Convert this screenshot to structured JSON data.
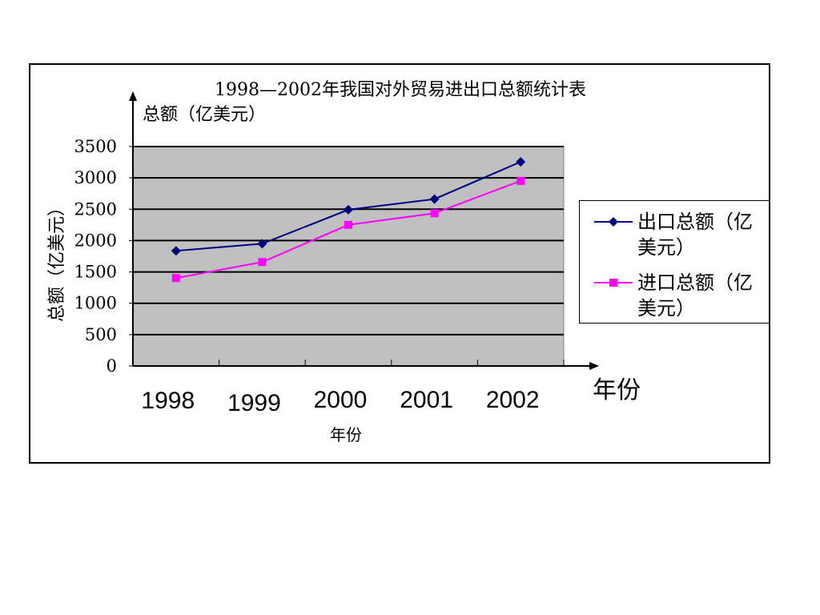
{
  "chart_data": {
    "type": "line",
    "title": "1998—2002年我国对外贸易进出口总额统计表",
    "ylabel": "总额（亿美元）",
    "ylabel_top": "总额（亿美元）",
    "xlabel": "年份",
    "xlabel_arrow": "年份",
    "categories": [
      "1998",
      "1999",
      "2000",
      "2001",
      "2002"
    ],
    "y_ticks": [
      "0",
      "500",
      "1000",
      "1500",
      "2000",
      "2500",
      "3000",
      "3500"
    ],
    "ylim": [
      0,
      3500
    ],
    "grid": true,
    "legend_position": "right",
    "plot_background": "#c0c0c0",
    "series": [
      {
        "name": "出口总额（亿美元）",
        "color": "#000080",
        "marker": "diamond",
        "values": [
          1837,
          1949,
          2492,
          2662,
          3256
        ]
      },
      {
        "name": "进口总额（亿美元）",
        "color": "#ff00ff",
        "marker": "square",
        "values": [
          1402,
          1657,
          2251,
          2436,
          2952
        ]
      }
    ]
  }
}
